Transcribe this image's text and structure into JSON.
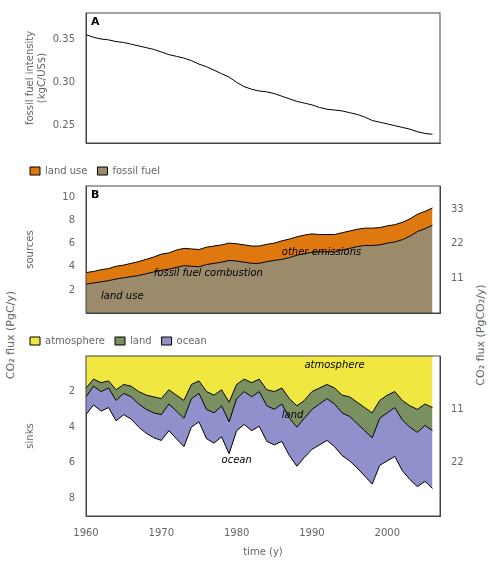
{
  "chart_data": [
    {
      "type": "line",
      "title": "A",
      "x": [
        1960,
        1961,
        1962,
        1963,
        1964,
        1965,
        1966,
        1967,
        1968,
        1969,
        1970,
        1971,
        1972,
        1973,
        1974,
        1975,
        1976,
        1977,
        1978,
        1979,
        1980,
        1981,
        1982,
        1983,
        1984,
        1985,
        1986,
        1987,
        1988,
        1989,
        1990,
        1991,
        1992,
        1993,
        1994,
        1995,
        1996,
        1997,
        1998,
        1999,
        2000,
        2001,
        2002,
        2003,
        2004,
        2005,
        2006
      ],
      "values": [
        0.355,
        0.352,
        0.35,
        0.349,
        0.347,
        0.346,
        0.344,
        0.342,
        0.34,
        0.338,
        0.335,
        0.332,
        0.33,
        0.328,
        0.325,
        0.321,
        0.318,
        0.314,
        0.31,
        0.306,
        0.3,
        0.295,
        0.292,
        0.29,
        0.289,
        0.287,
        0.284,
        0.281,
        0.278,
        0.276,
        0.274,
        0.271,
        0.269,
        0.268,
        0.267,
        0.265,
        0.263,
        0.26,
        0.256,
        0.254,
        0.252,
        0.25,
        0.248,
        0.246,
        0.243,
        0.241,
        0.24
      ],
      "color": "black",
      "ylabel": "fossil fuel intensity\n(kgC/US$)",
      "xlim": [
        1960,
        2007
      ],
      "xticks": [
        1960,
        1970,
        1980,
        1990,
        2000
      ],
      "ylim": [
        0.23,
        0.38
      ],
      "yticks": [
        0.25,
        {
          "value": 0.3,
          "label": "0.30"
        },
        0.35
      ],
      "grid": false,
      "tick_labels": "y"
    },
    {
      "type": "area",
      "title": "B",
      "stacked": true,
      "x": [
        1960,
        1961,
        1962,
        1963,
        1964,
        1965,
        1966,
        1967,
        1968,
        1969,
        1970,
        1971,
        1972,
        1973,
        1974,
        1975,
        1976,
        1977,
        1978,
        1979,
        1980,
        1981,
        1982,
        1983,
        1984,
        1985,
        1986,
        1987,
        1988,
        1989,
        1990,
        1991,
        1992,
        1993,
        1994,
        1995,
        1996,
        1997,
        1998,
        1999,
        2000,
        2001,
        2002,
        2003,
        2004,
        2005,
        2006
      ],
      "series": [
        {
          "name": "fossil fuel",
          "color": "#9b8b6b",
          "values": [
            2.5,
            2.6,
            2.7,
            2.8,
            2.95,
            3.05,
            3.15,
            3.25,
            3.4,
            3.55,
            3.7,
            3.8,
            3.95,
            4.1,
            4.05,
            4.0,
            4.2,
            4.3,
            4.4,
            4.55,
            4.5,
            4.4,
            4.3,
            4.3,
            4.45,
            4.55,
            4.65,
            4.8,
            5.0,
            5.15,
            5.25,
            5.3,
            5.3,
            5.3,
            5.45,
            5.6,
            5.75,
            5.85,
            5.85,
            5.9,
            6.05,
            6.15,
            6.35,
            6.65,
            7.05,
            7.3,
            7.6
          ]
        },
        {
          "name": "land use",
          "color": "#e07810",
          "values": [
            1.0,
            1.0,
            1.05,
            1.05,
            1.1,
            1.1,
            1.15,
            1.2,
            1.25,
            1.3,
            1.4,
            1.4,
            1.5,
            1.5,
            1.5,
            1.5,
            1.5,
            1.5,
            1.5,
            1.5,
            1.5,
            1.5,
            1.5,
            1.5,
            1.5,
            1.5,
            1.6,
            1.6,
            1.6,
            1.6,
            1.6,
            1.5,
            1.5,
            1.5,
            1.5,
            1.5,
            1.5,
            1.5,
            1.5,
            1.5,
            1.5,
            1.5,
            1.5,
            1.5,
            1.5,
            1.5,
            1.5
          ]
        }
      ],
      "ylabel": "sources",
      "xlim": [
        1960,
        2007
      ],
      "xticks": [
        1960,
        1970,
        1980,
        1990,
        2000
      ],
      "ylim": [
        0,
        11
      ],
      "yticks": [
        2,
        4,
        6,
        8,
        10
      ],
      "y2lim": [
        0,
        40.304
      ],
      "y2ticks": [
        11,
        22,
        33
      ],
      "annotations": [
        {
          "text": "land use",
          "x": 1962,
          "y": 1.25
        },
        {
          "text": "fossil fuel combustion",
          "x": 1969,
          "y": 3.2
        },
        {
          "text": "other emissions",
          "x": 1986,
          "y": 5.0
        }
      ],
      "legend": "upper left",
      "grid": false,
      "tick_labels": "y"
    },
    {
      "type": "area",
      "stacked": true,
      "x": [
        1960,
        1961,
        1962,
        1963,
        1964,
        1965,
        1966,
        1967,
        1968,
        1969,
        1970,
        1971,
        1972,
        1973,
        1974,
        1975,
        1976,
        1977,
        1978,
        1979,
        1980,
        1981,
        1982,
        1983,
        1984,
        1985,
        1986,
        1987,
        1988,
        1989,
        1990,
        1991,
        1992,
        1993,
        1994,
        1995,
        1996,
        1997,
        1998,
        1999,
        2000,
        2001,
        2002,
        2003,
        2004,
        2005,
        2006
      ],
      "series": [
        {
          "name": "atmosphere",
          "color": "#f0e840",
          "values": [
            1.8,
            1.3,
            1.5,
            1.4,
            1.9,
            1.6,
            1.7,
            2.0,
            2.2,
            2.3,
            2.4,
            1.9,
            2.2,
            2.5,
            1.6,
            1.4,
            2.0,
            2.2,
            1.9,
            2.6,
            1.6,
            1.3,
            1.5,
            1.3,
            1.9,
            2.0,
            1.8,
            2.4,
            2.8,
            2.5,
            2.0,
            1.8,
            1.6,
            1.8,
            2.2,
            2.3,
            2.6,
            2.9,
            3.2,
            2.5,
            2.2,
            2.0,
            2.5,
            2.8,
            3.0,
            2.7,
            2.9
          ]
        },
        {
          "name": "land",
          "color": "#7a9060",
          "values": [
            0.5,
            0.4,
            0.5,
            0.4,
            0.6,
            0.5,
            0.6,
            0.7,
            0.8,
            0.9,
            0.9,
            0.8,
            0.9,
            1.0,
            0.8,
            0.7,
            1.0,
            1.0,
            0.9,
            1.1,
            0.8,
            0.7,
            0.8,
            0.7,
            0.9,
            1.0,
            0.9,
            1.1,
            1.2,
            1.0,
            1.0,
            0.9,
            0.8,
            0.9,
            1.0,
            1.1,
            1.2,
            1.3,
            1.4,
            1.0,
            1.0,
            0.9,
            1.1,
            1.2,
            1.3,
            1.2,
            1.3
          ]
        },
        {
          "name": "ocean",
          "color": "#9090cc",
          "values": [
            1.0,
            1.05,
            1.1,
            1.1,
            1.15,
            1.2,
            1.25,
            1.3,
            1.35,
            1.4,
            1.45,
            1.5,
            1.55,
            1.6,
            1.6,
            1.6,
            1.65,
            1.7,
            1.75,
            1.8,
            1.8,
            1.85,
            1.9,
            1.95,
            2.0,
            2.0,
            2.1,
            2.1,
            2.2,
            2.2,
            2.25,
            2.3,
            2.35,
            2.4,
            2.4,
            2.5,
            2.5,
            2.55,
            2.6,
            2.65,
            2.7,
            2.75,
            2.85,
            2.95,
            3.05,
            3.15,
            3.25
          ]
        }
      ],
      "ylabel": "sinks",
      "xlabel": "time (y)",
      "outer_ylabel": "CO₂ flux (PgC/y)",
      "outer_y2label": "CO₂ flux (PgCO₂/y)",
      "xlim": [
        1960,
        2007
      ],
      "xticks": [
        1960,
        1970,
        1980,
        1990,
        2000
      ],
      "ylim": [
        9,
        0
      ],
      "yticks": [
        2,
        4,
        6,
        8
      ],
      "y2lim": [
        32.976,
        0
      ],
      "y2ticks": [
        11,
        22
      ],
      "annotations": [
        {
          "text": "atmosphere",
          "x": 1989,
          "y": 0.7
        },
        {
          "text": "land",
          "x": 1986,
          "y": 3.5
        },
        {
          "text": "ocean",
          "x": 1978,
          "y": 6.0
        }
      ],
      "legend": "upper left",
      "grid": false
    }
  ]
}
